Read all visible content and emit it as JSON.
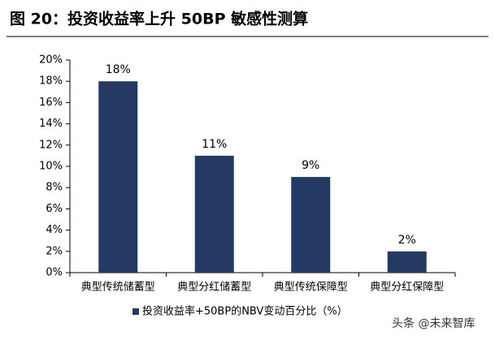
{
  "chart_data": {
    "type": "bar",
    "title": "图 20：投资收益率上升 50BP 敏感性测算",
    "categories": [
      "典型传统储蓄型",
      "典型分红储蓄型",
      "典型传统保障型",
      "典型分红保障型"
    ],
    "series": [
      {
        "name": "投资收益率+50BP的NBV变动百分比（%）",
        "color": "#243a63",
        "values": [
          18,
          11,
          9,
          2
        ],
        "value_labels": [
          "18%",
          "11%",
          "9%",
          "2%"
        ]
      }
    ],
    "ylim": [
      0,
      20
    ],
    "yticks": [
      {
        "value": 0,
        "label": "0%"
      },
      {
        "value": 2,
        "label": "2%"
      },
      {
        "value": 4,
        "label": "4%"
      },
      {
        "value": 6,
        "label": "6%"
      },
      {
        "value": 8,
        "label": "8%"
      },
      {
        "value": 10,
        "label": "10%"
      },
      {
        "value": 12,
        "label": "12%"
      },
      {
        "value": 14,
        "label": "14%"
      },
      {
        "value": 16,
        "label": "16%"
      },
      {
        "value": 18,
        "label": "18%"
      },
      {
        "value": 20,
        "label": "20%"
      }
    ],
    "legend": "bottom",
    "watermark": "头条 @未来智库"
  }
}
